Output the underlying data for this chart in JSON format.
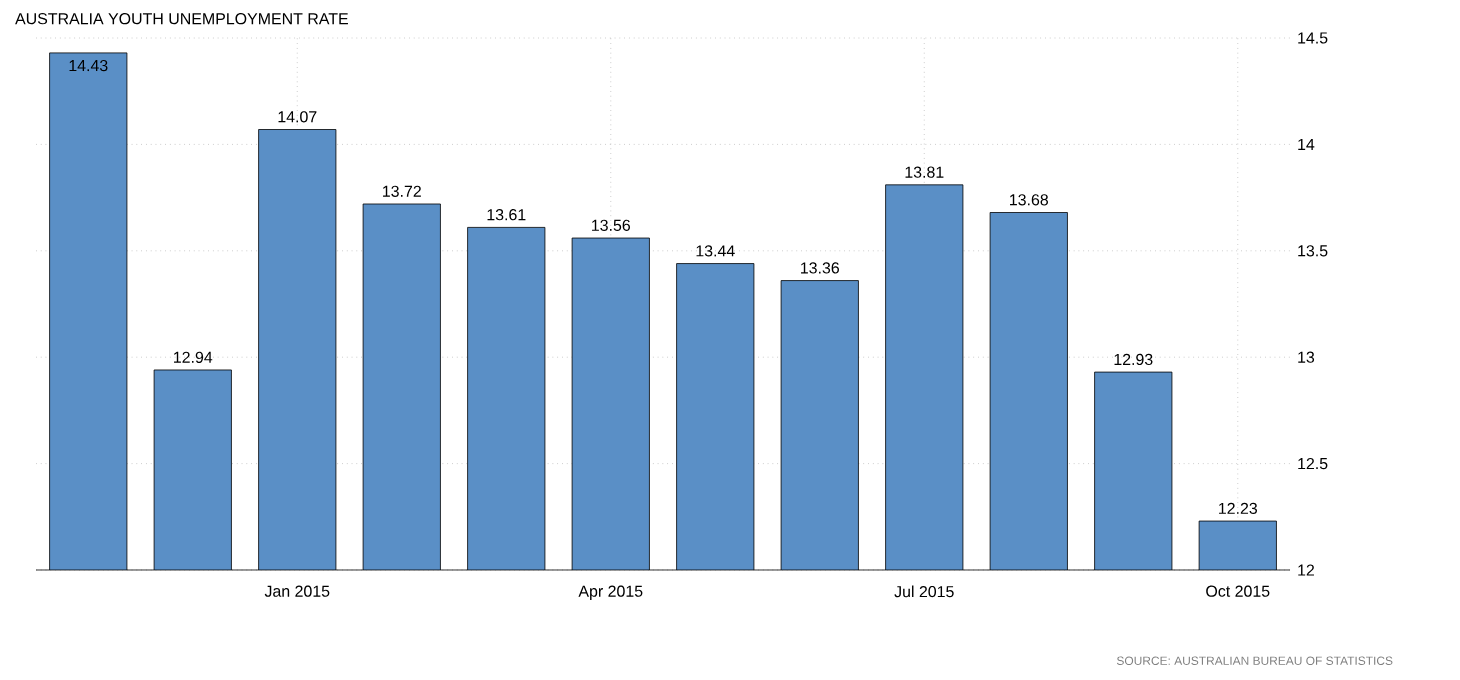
{
  "chart_data": {
    "type": "bar",
    "title": "AUSTRALIA YOUTH UNEMPLOYMENT RATE",
    "categories": [
      null,
      null,
      "Jan 2015",
      null,
      null,
      "Apr 2015",
      null,
      null,
      "Jul 2015",
      null,
      null,
      "Oct 2015"
    ],
    "values": [
      14.43,
      12.94,
      14.07,
      13.72,
      13.61,
      13.56,
      13.44,
      13.36,
      13.81,
      13.68,
      12.93,
      12.23
    ],
    "color": "#5a8fc6",
    "ylim": [
      12,
      14.5
    ],
    "yticks": [
      12,
      12.5,
      13,
      13.5,
      14,
      14.5
    ],
    "grid": true,
    "data_labels": true,
    "annotations": [
      "SOURCE: AUSTRALIAN BUREAU OF STATISTICS"
    ]
  }
}
